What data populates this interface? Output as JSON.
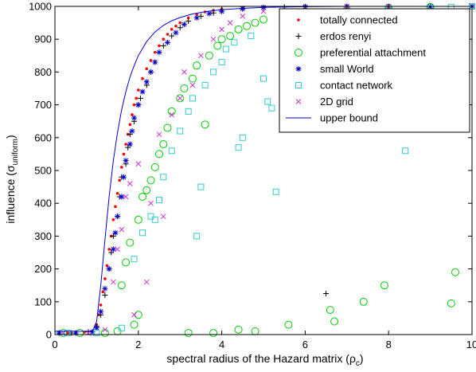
{
  "chart_data": {
    "type": "scatter",
    "title": "",
    "xlabel": "spectral radius of the Hazard matrix (",
    "xlabel_symbol": "ρ",
    "xlabel_sub": "c",
    "xlabel_end": ")",
    "ylabel": "influence (",
    "ylabel_symbol": "σ",
    "ylabel_sub": "uniform",
    "ylabel_end": ")",
    "xlim": [
      0,
      10
    ],
    "ylim": [
      0,
      1000
    ],
    "xticks": [
      0,
      2,
      4,
      6,
      8,
      10
    ],
    "yticks": [
      0,
      100,
      200,
      300,
      400,
      500,
      600,
      700,
      800,
      900,
      1000
    ],
    "grid": false,
    "legend_position": "top-right",
    "colors": {
      "totally_connected": "#ff0000",
      "erdos_renyi": "#000000",
      "preferential_attachment": "#00cc00",
      "small_world": "#0000cc",
      "contact_network": "#33cccc",
      "grid_2d": "#cc33cc",
      "upper_bound": "#0000cc"
    },
    "series": [
      {
        "name": "totally connected",
        "marker": "dot",
        "color_key": "totally_connected",
        "points": [
          [
            0.1,
            5
          ],
          [
            0.3,
            5
          ],
          [
            0.5,
            6
          ],
          [
            0.7,
            7
          ],
          [
            0.9,
            10
          ],
          [
            1.0,
            30
          ],
          [
            1.05,
            60
          ],
          [
            1.1,
            90
          ],
          [
            1.15,
            130
          ],
          [
            1.2,
            170
          ],
          [
            1.25,
            210
          ],
          [
            1.3,
            260
          ],
          [
            1.35,
            300
          ],
          [
            1.4,
            350
          ],
          [
            1.45,
            390
          ],
          [
            1.5,
            430
          ],
          [
            1.55,
            470
          ],
          [
            1.6,
            510
          ],
          [
            1.65,
            550
          ],
          [
            1.7,
            580
          ],
          [
            1.75,
            610
          ],
          [
            1.8,
            640
          ],
          [
            1.85,
            670
          ],
          [
            1.9,
            700
          ],
          [
            1.95,
            720
          ],
          [
            2.0,
            745
          ],
          [
            2.1,
            780
          ],
          [
            2.2,
            810
          ],
          [
            2.3,
            835
          ],
          [
            2.4,
            860
          ],
          [
            2.5,
            880
          ],
          [
            2.6,
            900
          ],
          [
            2.7,
            915
          ],
          [
            2.8,
            930
          ],
          [
            2.9,
            940
          ],
          [
            3.0,
            950
          ],
          [
            3.2,
            965
          ],
          [
            3.4,
            975
          ],
          [
            3.6,
            983
          ],
          [
            3.8,
            988
          ],
          [
            4.0,
            992
          ],
          [
            4.5,
            996
          ],
          [
            5.0,
            998
          ],
          [
            6.0,
            999
          ],
          [
            7.0,
            1000
          ]
        ]
      },
      {
        "name": "erdos renyi",
        "marker": "plus",
        "color_key": "erdos_renyi",
        "points": [
          [
            0.1,
            5
          ],
          [
            0.4,
            5
          ],
          [
            0.8,
            8
          ],
          [
            1.0,
            25
          ],
          [
            1.1,
            60
          ],
          [
            1.2,
            120
          ],
          [
            1.3,
            200
          ],
          [
            1.35,
            250
          ],
          [
            1.4,
            300
          ],
          [
            1.5,
            360
          ],
          [
            1.55,
            420
          ],
          [
            1.6,
            480
          ],
          [
            1.7,
            520
          ],
          [
            1.75,
            570
          ],
          [
            1.8,
            610
          ],
          [
            1.9,
            650
          ],
          [
            2.0,
            700
          ],
          [
            2.05,
            720
          ],
          [
            2.2,
            760
          ],
          [
            2.3,
            800
          ],
          [
            2.4,
            830
          ],
          [
            2.5,
            860
          ],
          [
            2.6,
            880
          ],
          [
            2.8,
            910
          ],
          [
            3.0,
            935
          ],
          [
            3.2,
            955
          ],
          [
            3.5,
            970
          ],
          [
            3.8,
            980
          ],
          [
            4.0,
            985
          ],
          [
            4.5,
            992
          ],
          [
            5.0,
            996
          ],
          [
            5.5,
            998
          ],
          [
            6.5,
            125
          ],
          [
            6.0,
            999
          ],
          [
            7.0,
            1000
          ],
          [
            8.0,
            1000
          ],
          [
            9.0,
            1000
          ]
        ]
      },
      {
        "name": "preferential attachment",
        "marker": "circle",
        "color_key": "preferential_attachment",
        "points": [
          [
            0.2,
            5
          ],
          [
            0.6,
            5
          ],
          [
            1.2,
            5
          ],
          [
            1.5,
            10
          ],
          [
            1.6,
            150
          ],
          [
            1.7,
            220
          ],
          [
            1.8,
            280
          ],
          [
            1.9,
            30
          ],
          [
            2.0,
            60
          ],
          [
            2.0,
            350
          ],
          [
            2.1,
            420
          ],
          [
            2.2,
            440
          ],
          [
            2.3,
            470
          ],
          [
            2.4,
            510
          ],
          [
            2.5,
            550
          ],
          [
            2.6,
            580
          ],
          [
            2.7,
            630
          ],
          [
            2.8,
            680
          ],
          [
            3.0,
            720
          ],
          [
            3.1,
            750
          ],
          [
            3.3,
            780
          ],
          [
            3.4,
            820
          ],
          [
            3.6,
            640
          ],
          [
            3.7,
            850
          ],
          [
            3.9,
            880
          ],
          [
            4.0,
            900
          ],
          [
            4.2,
            910
          ],
          [
            4.4,
            930
          ],
          [
            4.6,
            940
          ],
          [
            4.8,
            950
          ],
          [
            3.2,
            5
          ],
          [
            3.8,
            5
          ],
          [
            4.4,
            15
          ],
          [
            4.8,
            10
          ],
          [
            5.6,
            30
          ],
          [
            6.6,
            75
          ],
          [
            6.7,
            40
          ],
          [
            7.4,
            100
          ],
          [
            7.9,
            150
          ],
          [
            9.5,
            95
          ],
          [
            9.6,
            190
          ],
          [
            5.0,
            960
          ],
          [
            5.5,
            970
          ],
          [
            6.0,
            980
          ],
          [
            7.0,
            990
          ],
          [
            8.0,
            995
          ],
          [
            9.0,
            998
          ]
        ]
      },
      {
        "name": "small World",
        "marker": "star",
        "color_key": "small_world",
        "points": [
          [
            0.1,
            5
          ],
          [
            0.5,
            5
          ],
          [
            0.9,
            8
          ],
          [
            1.0,
            20
          ],
          [
            1.1,
            70
          ],
          [
            1.2,
            140
          ],
          [
            1.3,
            200
          ],
          [
            1.4,
            260
          ],
          [
            1.45,
            310
          ],
          [
            1.5,
            360
          ],
          [
            1.6,
            420
          ],
          [
            1.65,
            480
          ],
          [
            1.7,
            530
          ],
          [
            1.8,
            580
          ],
          [
            1.85,
            620
          ],
          [
            1.9,
            660
          ],
          [
            2.0,
            700
          ],
          [
            2.1,
            740
          ],
          [
            2.2,
            770
          ],
          [
            2.3,
            800
          ],
          [
            2.4,
            830
          ],
          [
            2.5,
            860
          ],
          [
            2.7,
            890
          ],
          [
            2.9,
            920
          ],
          [
            3.1,
            945
          ],
          [
            3.4,
            965
          ],
          [
            3.7,
            978
          ],
          [
            4.0,
            985
          ],
          [
            4.5,
            993
          ],
          [
            5.0,
            997
          ],
          [
            6.0,
            999
          ],
          [
            7.0,
            1000
          ],
          [
            8.0,
            1000
          ],
          [
            9.0,
            1000
          ],
          [
            10.0,
            1000
          ]
        ]
      },
      {
        "name": "contact network",
        "marker": "square",
        "color_key": "contact_network",
        "points": [
          [
            0.3,
            5
          ],
          [
            1.0,
            5
          ],
          [
            1.6,
            20
          ],
          [
            1.9,
            230
          ],
          [
            2.1,
            310
          ],
          [
            2.3,
            360
          ],
          [
            2.4,
            350
          ],
          [
            2.5,
            410
          ],
          [
            2.6,
            480
          ],
          [
            2.8,
            560
          ],
          [
            3.0,
            620
          ],
          [
            3.2,
            680
          ],
          [
            3.3,
            720
          ],
          [
            3.4,
            300
          ],
          [
            3.5,
            450
          ],
          [
            3.6,
            760
          ],
          [
            3.8,
            800
          ],
          [
            4.0,
            830
          ],
          [
            4.1,
            870
          ],
          [
            4.3,
            890
          ],
          [
            4.4,
            570
          ],
          [
            4.5,
            600
          ],
          [
            4.7,
            910
          ],
          [
            5.0,
            780
          ],
          [
            5.1,
            710
          ],
          [
            5.2,
            690
          ],
          [
            5.3,
            435
          ],
          [
            5.5,
            940
          ],
          [
            5.8,
            960
          ],
          [
            6.2,
            920
          ],
          [
            6.5,
            970
          ],
          [
            7.0,
            980
          ],
          [
            8.0,
            990
          ],
          [
            8.4,
            560
          ],
          [
            9.0,
            995
          ],
          [
            9.5,
            998
          ],
          [
            10.0,
            1000
          ]
        ]
      },
      {
        "name": "2D grid",
        "marker": "cross",
        "color_key": "grid_2d",
        "points": [
          [
            0.2,
            5
          ],
          [
            0.8,
            5
          ],
          [
            1.2,
            15
          ],
          [
            1.4,
            160
          ],
          [
            1.5,
            260
          ],
          [
            1.6,
            320
          ],
          [
            1.7,
            420
          ],
          [
            1.8,
            460
          ],
          [
            1.9,
            60
          ],
          [
            2.0,
            520
          ],
          [
            2.2,
            160
          ],
          [
            2.3,
            400
          ],
          [
            2.5,
            610
          ],
          [
            2.6,
            360
          ],
          [
            2.8,
            670
          ],
          [
            3.0,
            720
          ],
          [
            3.1,
            800
          ],
          [
            3.3,
            760
          ],
          [
            3.5,
            850
          ],
          [
            3.8,
            900
          ],
          [
            4.0,
            930
          ],
          [
            4.2,
            950
          ],
          [
            4.5,
            970
          ],
          [
            5.0,
            985
          ],
          [
            6.0,
            995
          ],
          [
            7.0,
            998
          ],
          [
            8.0,
            1000
          ]
        ]
      }
    ],
    "upper_bound": {
      "name": "upper bound",
      "x": [
        0,
        0.9,
        1.0,
        1.1,
        1.2,
        1.3,
        1.4,
        1.5,
        1.6,
        1.7,
        1.8,
        1.9,
        2.0,
        2.2,
        2.4,
        2.6,
        2.8,
        3.0,
        3.3,
        3.6,
        4.0,
        4.5,
        5.0,
        6.0,
        7.0,
        8.0,
        10.0
      ],
      "y": [
        10,
        10,
        40,
        150,
        290,
        420,
        530,
        615,
        685,
        740,
        785,
        820,
        850,
        893,
        922,
        942,
        956,
        966,
        977,
        984,
        990,
        994,
        997,
        999,
        1000,
        1000,
        1000
      ]
    },
    "legend": [
      "totally connected",
      "erdos renyi",
      "preferential attachment",
      "small World",
      "contact network",
      "2D grid",
      "upper bound"
    ]
  }
}
